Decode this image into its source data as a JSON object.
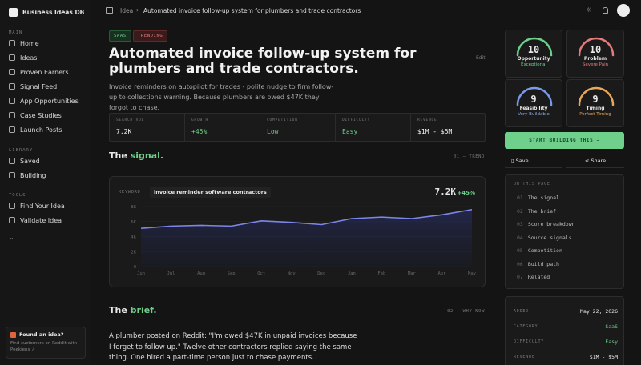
{
  "sidebar": {
    "brand": "Business Ideas DB",
    "sections": [
      {
        "label": "MAIN",
        "items": [
          "Home",
          "Ideas",
          "Proven Earners",
          "Signal Feed",
          "App Opportunities",
          "Case Studies",
          "Launch Posts"
        ]
      },
      {
        "label": "LIBRARY",
        "items": [
          "Saved",
          "Building"
        ]
      },
      {
        "label": "TOOLS",
        "items": [
          "Find Your Idea",
          "Validate Idea"
        ]
      }
    ],
    "promo": {
      "title": "Found an idea?",
      "text": "Find customers on Reddit with Peekiens ↗"
    }
  },
  "topbar": {
    "breadcrumb": [
      "Idea",
      "Automated invoice follow-up system for plumbers and trade contractors"
    ]
  },
  "idea": {
    "tags": [
      "SAAS",
      "TRENDING"
    ],
    "title": "Automated invoice follow-up system for plumbers and trade contractors.",
    "edit": "Edit",
    "description": "Invoice reminders on autopilot for trades - polite nudge to firm follow-up to collections warning. Because plumbers are owed $47K they forgot to chase.",
    "stats": [
      {
        "label": "SEARCH VOL",
        "value": "7.2K"
      },
      {
        "label": "GROWTH",
        "value": "+45%"
      },
      {
        "label": "COMPETITION",
        "value": "Low"
      },
      {
        "label": "DIFFICULTY",
        "value": "Easy"
      },
      {
        "label": "REVENUE",
        "value": "$1M - $5M"
      }
    ]
  },
  "signal": {
    "heading": [
      "The",
      "signal."
    ],
    "index": "01 — TREND",
    "keyword_label": "KEYWORD",
    "keyword": "invoice reminder software contractors",
    "volume": "7.2K",
    "growth": "+45%"
  },
  "chart_data": {
    "type": "line",
    "categories": [
      "Jun",
      "Jul",
      "Aug",
      "Sep",
      "Oct",
      "Nov",
      "Dec",
      "Jan",
      "Feb",
      "Mar",
      "Apr",
      "May"
    ],
    "values": [
      5100,
      5400,
      5500,
      5400,
      6100,
      5900,
      5600,
      6400,
      6600,
      6400,
      6900,
      7600
    ],
    "color": "#7b86e8",
    "ylim": [
      0,
      8000
    ],
    "yticks": [
      0,
      {
        "value": 2000,
        "label": "2K"
      },
      {
        "value": 4000,
        "label": "4K"
      },
      {
        "value": 6000,
        "label": "6K"
      },
      {
        "value": 8000,
        "label": "8K"
      }
    ],
    "grid": true
  },
  "brief": {
    "heading": [
      "The",
      "brief."
    ],
    "index": "02 — WHY NOW",
    "text": "A plumber posted on Reddit: \"I'm owed $47K in unpaid invoices because I forget to follow up.\" Twelve other contractors replied saying the same thing. One hired a part-time person just to chase payments."
  },
  "scores": [
    {
      "score": "10",
      "title": "Opportunity",
      "sub": "Exceptional"
    },
    {
      "score": "10",
      "title": "Problem",
      "sub": "Severe Pain"
    },
    {
      "score": "9",
      "title": "Feasibility",
      "sub": "Very Buildable"
    },
    {
      "score": "9",
      "title": "Timing",
      "sub": "Perfect Timing"
    }
  ],
  "actions": {
    "primary": "START BUILDING THIS →",
    "save": "Save",
    "share": "Share"
  },
  "toc": {
    "title": "ON THIS PAGE",
    "items": [
      [
        "01",
        "The signal"
      ],
      [
        "02",
        "The brief"
      ],
      [
        "03",
        "Score breakdown"
      ],
      [
        "04",
        "Source signals"
      ],
      [
        "05",
        "Competition"
      ],
      [
        "06",
        "Build path"
      ],
      [
        "07",
        "Related"
      ]
    ]
  },
  "meta": [
    [
      "ADDED",
      "May 22, 2026"
    ],
    [
      "CATEGORY",
      "SaaS"
    ],
    [
      "DIFFICULTY",
      "Easy"
    ],
    [
      "REVENUE",
      "$1M - $5M"
    ]
  ]
}
